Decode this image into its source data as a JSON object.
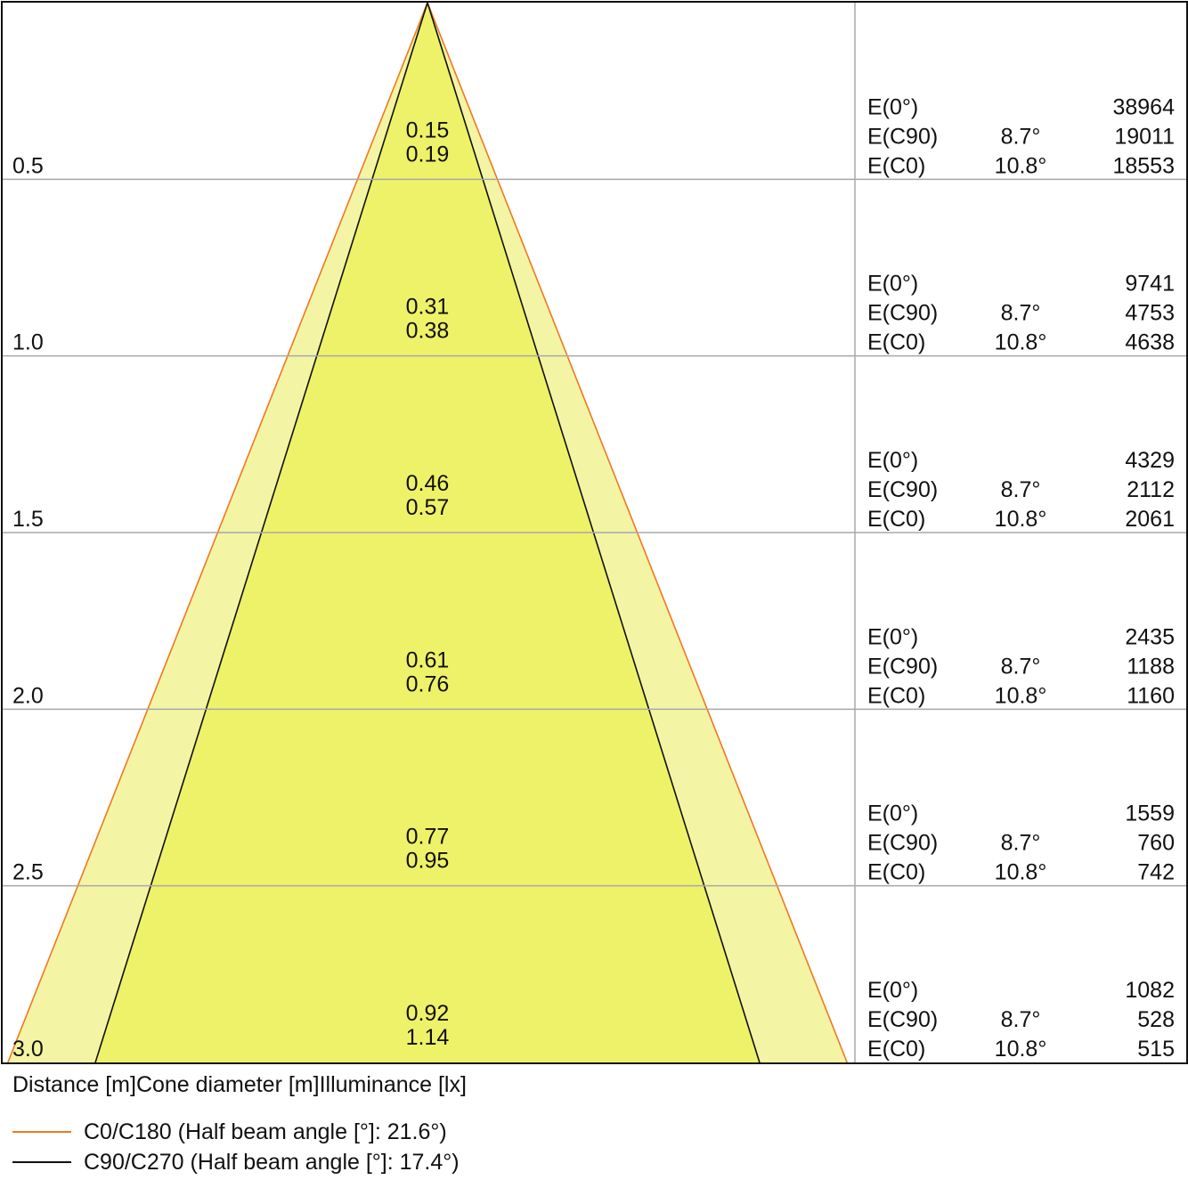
{
  "chart_data": {
    "type": "cone-diagram",
    "axis_labels": {
      "distance": "Distance [m]",
      "cone_diameter": "Cone diameter [m]",
      "illuminance": "Illuminance [lx]"
    },
    "rows": [
      {
        "distance": "0.5",
        "diameter_c90": "0.15",
        "diameter_c0": "0.19",
        "illuminance": [
          {
            "label": "E(0°)",
            "angle": "",
            "value": "38964"
          },
          {
            "label": "E(C90)",
            "angle": "8.7°",
            "value": "19011"
          },
          {
            "label": "E(C0)",
            "angle": "10.8°",
            "value": "18553"
          }
        ]
      },
      {
        "distance": "1.0",
        "diameter_c90": "0.31",
        "diameter_c0": "0.38",
        "illuminance": [
          {
            "label": "E(0°)",
            "angle": "",
            "value": "9741"
          },
          {
            "label": "E(C90)",
            "angle": "8.7°",
            "value": "4753"
          },
          {
            "label": "E(C0)",
            "angle": "10.8°",
            "value": "4638"
          }
        ]
      },
      {
        "distance": "1.5",
        "diameter_c90": "0.46",
        "diameter_c0": "0.57",
        "illuminance": [
          {
            "label": "E(0°)",
            "angle": "",
            "value": "4329"
          },
          {
            "label": "E(C90)",
            "angle": "8.7°",
            "value": "2112"
          },
          {
            "label": "E(C0)",
            "angle": "10.8°",
            "value": "2061"
          }
        ]
      },
      {
        "distance": "2.0",
        "diameter_c90": "0.61",
        "diameter_c0": "0.76",
        "illuminance": [
          {
            "label": "E(0°)",
            "angle": "",
            "value": "2435"
          },
          {
            "label": "E(C90)",
            "angle": "8.7°",
            "value": "1188"
          },
          {
            "label": "E(C0)",
            "angle": "10.8°",
            "value": "1160"
          }
        ]
      },
      {
        "distance": "2.5",
        "diameter_c90": "0.77",
        "diameter_c0": "0.95",
        "illuminance": [
          {
            "label": "E(0°)",
            "angle": "",
            "value": "1559"
          },
          {
            "label": "E(C90)",
            "angle": "8.7°",
            "value": "760"
          },
          {
            "label": "E(C0)",
            "angle": "10.8°",
            "value": "742"
          }
        ]
      },
      {
        "distance": "3.0",
        "diameter_c90": "0.92",
        "diameter_c0": "1.14",
        "illuminance": [
          {
            "label": "E(0°)",
            "angle": "",
            "value": "1082"
          },
          {
            "label": "E(C90)",
            "angle": "8.7°",
            "value": "528"
          },
          {
            "label": "E(C0)",
            "angle": "10.8°",
            "value": "515"
          }
        ]
      }
    ],
    "cones": [
      {
        "name": "C0/C180",
        "half_beam_angle_deg": 21.6,
        "color": "#f07820",
        "fill": "#f3f5a4"
      },
      {
        "name": "C90/C270",
        "half_beam_angle_deg": 17.4,
        "color": "#111111",
        "fill": "#eef268"
      }
    ],
    "legend": [
      {
        "text": "C0/C180 (Half beam angle [°]: 21.6°)",
        "color": "#f07820"
      },
      {
        "text": "C90/C270 (Half beam angle [°]: 17.4°)",
        "color": "#111111"
      }
    ],
    "max_distance": 3.0
  }
}
